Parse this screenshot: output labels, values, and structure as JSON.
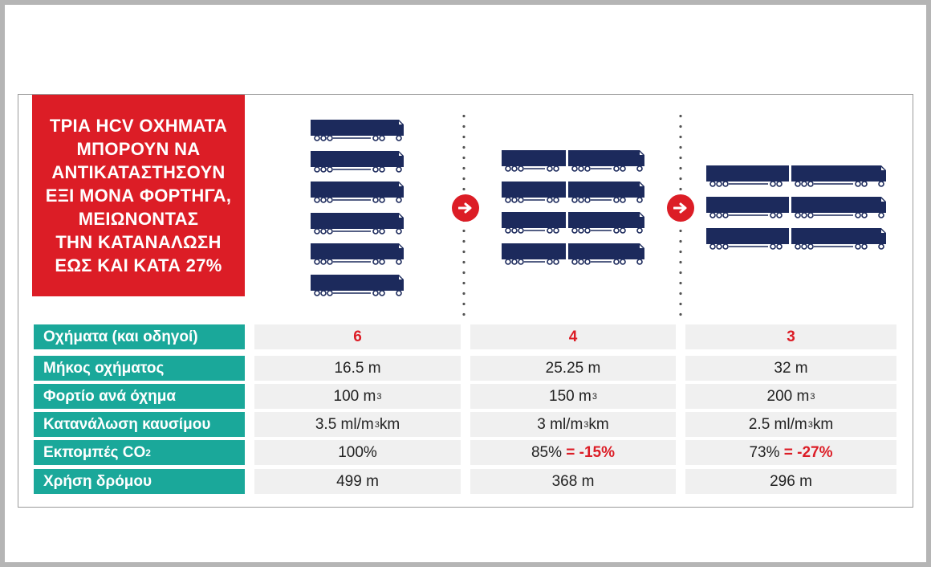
{
  "headline": {
    "lines": [
      "ΤΡΙΑ HCV ΟΧΗΜΑΤΑ",
      "ΜΠΟΡΟΥΝ ΝΑ",
      "ΑΝΤΙΚΑΤΑΣΤΗΣΟΥΝ",
      "ΕΞΙ ΜΟΝΑ ΦΟΡΤΗΓΑ,",
      "ΜΕΙΩΝΟΝΤΑΣ",
      "ΤΗΝ ΚΑΤΑΝΑΛΩΣΗ",
      "ΕΩΣ ΚΑΙ ΚΑΤΑ 27%"
    ]
  },
  "colors": {
    "accent_red": "#dc1d26",
    "teal": "#1aa89a",
    "truck_navy": "#1c2a5c",
    "cell_bg": "#f0f0f0"
  },
  "icons": {
    "truck": "truck-icon",
    "arrow": "arrow-right-icon"
  },
  "groups": [
    {
      "trucks": 6,
      "trailers_per_truck": 1
    },
    {
      "trucks": 4,
      "trailers_per_truck": 2
    },
    {
      "trucks": 3,
      "trailers_per_truck": 2
    }
  ],
  "table": {
    "rows": [
      {
        "label": "Οχήματα (και οδηγοί)",
        "values": [
          "6",
          "4",
          "3"
        ]
      },
      {
        "label": "Μήκος οχήματος",
        "values": [
          "16.5 m",
          "25.25 m",
          "32 m"
        ]
      },
      {
        "label": "Φορτίο ανά όχημα",
        "values": [
          "100 m",
          "150 m",
          "200 m"
        ],
        "sup": "3"
      },
      {
        "label": "Κατανάλωση καυσίμου",
        "values": [
          "3.5 ml/m",
          "3 ml/m",
          "2.5 ml/m"
        ],
        "sup": "3",
        "suffix": "km"
      },
      {
        "label_main": "Εκπομπές CO",
        "label_sub": "2",
        "values": [
          "100%",
          "85%",
          "73%"
        ],
        "deltas": [
          "",
          "= -15%",
          "= -27%"
        ]
      },
      {
        "label": "Χρήση δρόμου",
        "values": [
          "499 m",
          "368 m",
          "296 m"
        ]
      }
    ]
  }
}
